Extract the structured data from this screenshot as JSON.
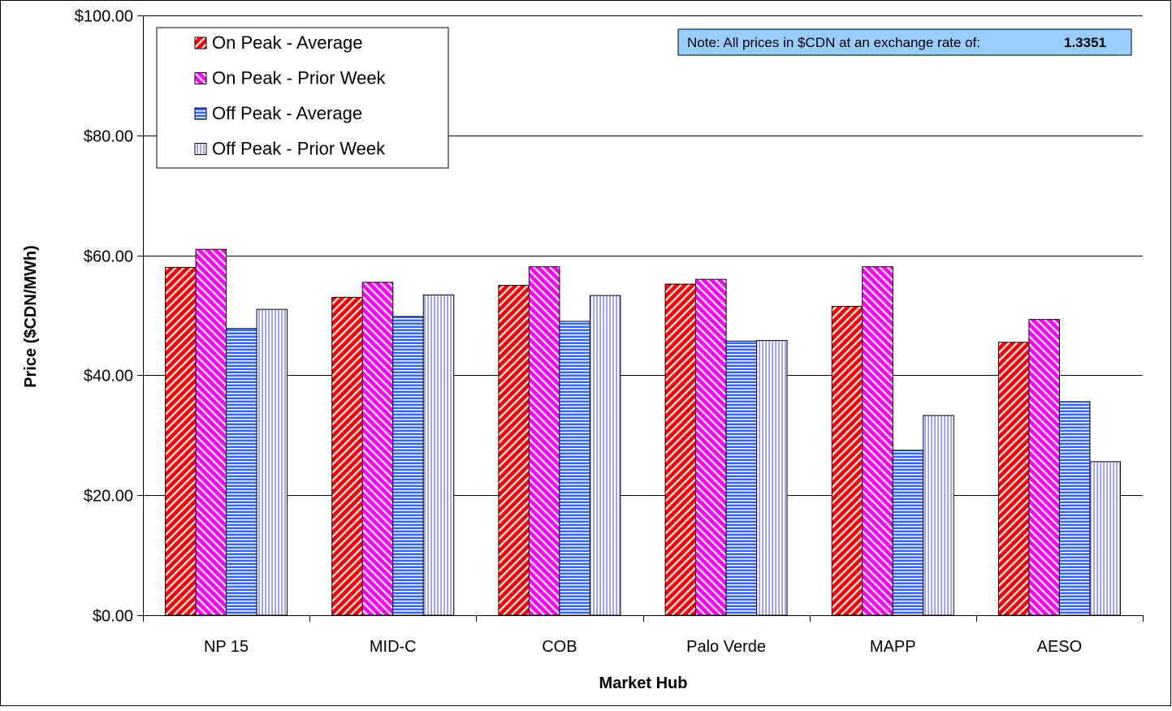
{
  "chart_data": {
    "type": "bar",
    "title": "",
    "xlabel": "Market Hub",
    "ylabel": "Price ($CDN/MWh)",
    "categories": [
      "NP 15",
      "MID-C",
      "COB",
      "Palo Verde",
      "MAPP",
      "AESO"
    ],
    "ylim": [
      0,
      100
    ],
    "yticks": [
      0,
      20,
      40,
      60,
      80,
      100
    ],
    "ytick_labels": [
      "$0.00",
      "$20.00",
      "$40.00",
      "$60.00",
      "$80.00",
      "$100.00"
    ],
    "grid": true,
    "legend_position": "top-left",
    "series": [
      {
        "name": "On Peak - Average",
        "values": [
          58.0,
          53.0,
          55.0,
          55.2,
          51.5,
          45.5
        ],
        "color": "#ff0000",
        "pattern": "diag-red"
      },
      {
        "name": "On Peak - Prior Week",
        "values": [
          61.0,
          55.5,
          58.1,
          56.0,
          58.1,
          49.3
        ],
        "color": "#ff00ff",
        "pattern": "diag-magenta"
      },
      {
        "name": "Off Peak - Average",
        "values": [
          47.8,
          49.8,
          49.0,
          45.7,
          27.5,
          35.6
        ],
        "color": "#3366ff",
        "pattern": "horiz-blue"
      },
      {
        "name": "Off Peak - Prior Week",
        "values": [
          51.0,
          53.4,
          53.3,
          45.8,
          33.3,
          25.6
        ],
        "color": "#9999ff",
        "pattern": "vert-lavender"
      }
    ],
    "note": {
      "text": "Note: All prices in $CDN at an exchange rate of:",
      "value": "1.3351"
    }
  }
}
